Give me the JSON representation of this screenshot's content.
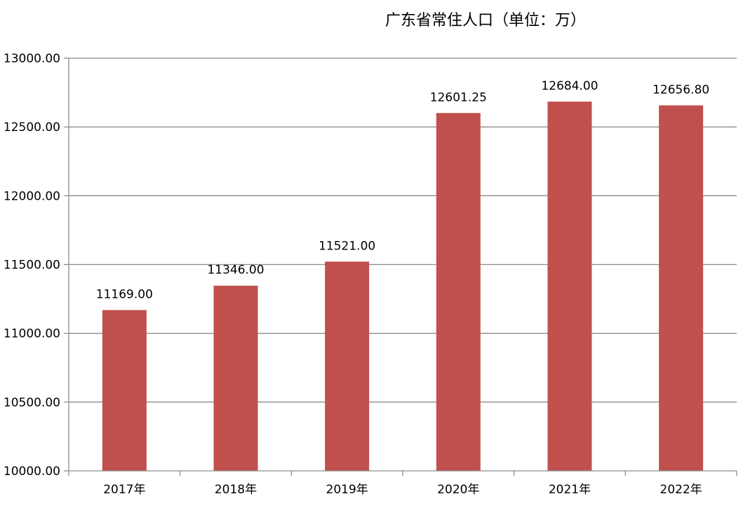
{
  "chart_data": {
    "type": "bar",
    "title": "广东省常住人口（单位：万）",
    "xlabel": "",
    "ylabel": "",
    "categories": [
      "2017年",
      "2018年",
      "2019年",
      "2020年",
      "2021年",
      "2022年"
    ],
    "values": [
      11169.0,
      11346.0,
      11521.0,
      12601.25,
      12684.0,
      12656.8
    ],
    "data_labels": [
      "11169.00",
      "11346.00",
      "11521.00",
      "12601.25",
      "12684.00",
      "12656.80"
    ],
    "ylim": [
      10000,
      13000
    ],
    "y_ticks": [
      10000,
      10500,
      11000,
      11500,
      12000,
      12500,
      13000
    ],
    "y_tick_labels": [
      "10000.00",
      "10500.00",
      "11000.00",
      "11500.00",
      "12000.00",
      "12500.00",
      "13000.00"
    ],
    "grid": true,
    "legend": "none",
    "bar_color": "#c0504d"
  }
}
